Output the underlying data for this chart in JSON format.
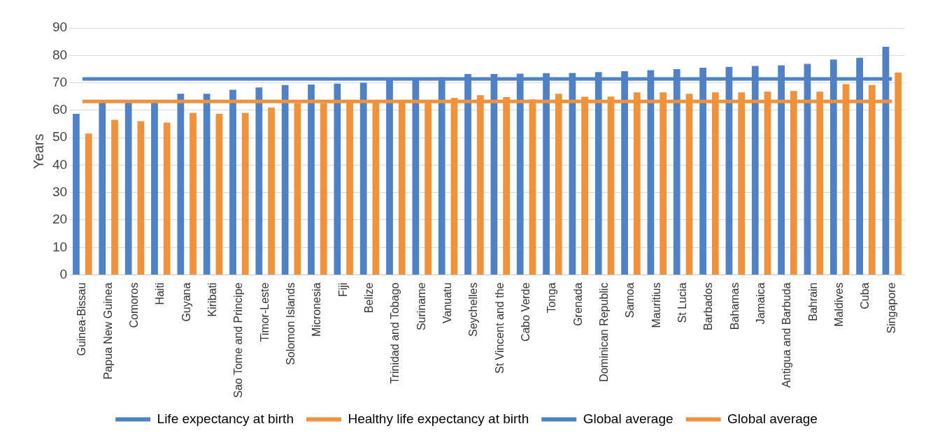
{
  "chart_data": {
    "type": "bar",
    "ylabel": "Years",
    "categories": [
      "Guinea-Bissau",
      "Papua New Guinea",
      "Comoros",
      "Haiti",
      "Guyana",
      "Kiribati",
      "Sao Tome and Principe",
      "Timor-Leste",
      "Solomon Islands",
      "Micronesia",
      "Fiji",
      "Belize",
      "Trinidad and Tobago",
      "Suriname",
      "Vanuatu",
      "Seychelles",
      "St Vincent and the",
      "Cabo Verde",
      "Tonga",
      "Grenada",
      "Dominican Republic",
      "Samoa",
      "Mauritius",
      "St Lucia",
      "Barbados",
      "Bahamas",
      "Jamaica",
      "Antigua and Barbuda",
      "Bahrain",
      "Maldives",
      "Cuba",
      "Singapore"
    ],
    "series": [
      {
        "name": "Life expectancy at birth",
        "color": "#4f81c4",
        "values": [
          58.7,
          63,
          63,
          63,
          66,
          66,
          67.5,
          68.3,
          69.2,
          69.4,
          69.7,
          70,
          71,
          71.3,
          72,
          73.2,
          73.2,
          73.3,
          73.5,
          73.6,
          73.9,
          74.2,
          74.6,
          75,
          75.5,
          75.8,
          76.1,
          76.4,
          76.9,
          78.5,
          79.1,
          83.1
        ]
      },
      {
        "name": "Healthy life expectancy at birth",
        "color": "#f0913c",
        "values": [
          51.5,
          56.5,
          56,
          55.5,
          59,
          58.7,
          59,
          61,
          62.5,
          62.5,
          63.5,
          63.5,
          63.5,
          63,
          64.5,
          65.5,
          64.8,
          64,
          66,
          64.9,
          65,
          66.5,
          66.5,
          66,
          66.5,
          66.5,
          66.8,
          67,
          66.8,
          69.5,
          69.2,
          73.8
        ]
      },
      {
        "type": "line",
        "name": "Global average",
        "color": "#4f81c4",
        "values": [
          71.4,
          71.4,
          71.4,
          71.4,
          71.4,
          71.4,
          71.4,
          71.4,
          71.4,
          71.4,
          71.4,
          71.4,
          71.4,
          71.4,
          71.4,
          71.4,
          71.4,
          71.4,
          71.4,
          71.4,
          71.4,
          71.4,
          71.4,
          71.4,
          71.4,
          71.4,
          71.4,
          71.4,
          71.4,
          71.4,
          71.4,
          71.4
        ]
      },
      {
        "type": "line",
        "name": "Global average",
        "color": "#f0913c",
        "values": [
          63.2,
          63.2,
          63.2,
          63.2,
          63.2,
          63.2,
          63.2,
          63.2,
          63.2,
          63.2,
          63.2,
          63.2,
          63.2,
          63.2,
          63.2,
          63.2,
          63.2,
          63.2,
          63.2,
          63.2,
          63.2,
          63.2,
          63.2,
          63.2,
          63.2,
          63.2,
          63.2,
          63.2,
          63.2,
          63.2,
          63.2,
          63.2
        ]
      }
    ],
    "ylim": [
      0,
      90
    ],
    "yticks": [
      0,
      10,
      20,
      30,
      40,
      50,
      60,
      70,
      80,
      90
    ],
    "grid": "y",
    "legend": "bottom"
  }
}
